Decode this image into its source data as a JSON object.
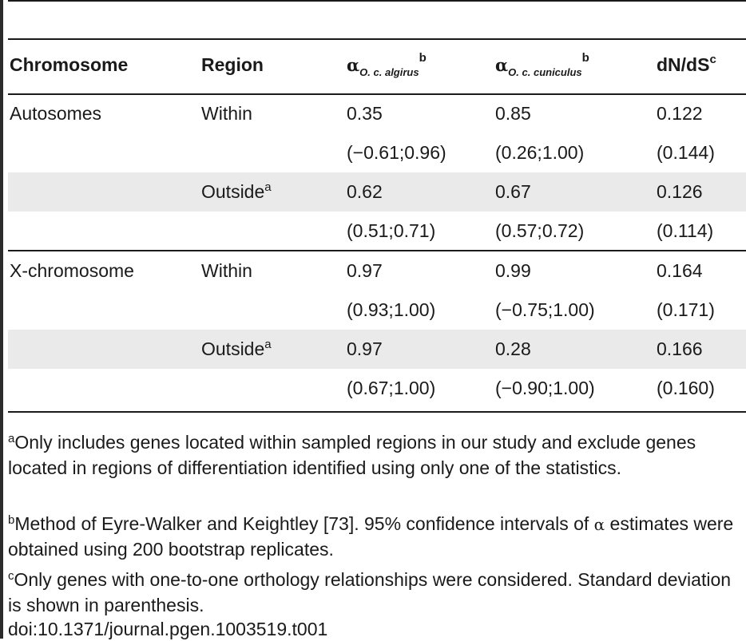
{
  "table": {
    "headers": {
      "chromosome": "Chromosome",
      "region": "Region",
      "alpha_algirus_symbol": "α",
      "alpha_algirus_sub": "O. c. algirus",
      "alpha_algirus_sup": "b",
      "alpha_cuniculus_symbol": "α",
      "alpha_cuniculus_sub": "O. c. cuniculus",
      "alpha_cuniculus_sup": "b",
      "dnds": "dN/dS",
      "dnds_sup": "c"
    },
    "rows": [
      {
        "chromosome": "Autosomes",
        "region": "Within",
        "region_sup": "",
        "alpha_algirus": "0.35",
        "alpha_cuniculus": "0.85",
        "dnds": "0.122"
      },
      {
        "chromosome": "",
        "region": "",
        "region_sup": "",
        "alpha_algirus": "(−0.61;0.96)",
        "alpha_cuniculus": "(0.26;1.00)",
        "dnds": "(0.144)"
      },
      {
        "chromosome": "",
        "region": "Outside",
        "region_sup": "a",
        "alpha_algirus": "0.62",
        "alpha_cuniculus": "0.67",
        "dnds": "0.126"
      },
      {
        "chromosome": "",
        "region": "",
        "region_sup": "",
        "alpha_algirus": "(0.51;0.71)",
        "alpha_cuniculus": "(0.57;0.72)",
        "dnds": "(0.114)"
      },
      {
        "chromosome": "X-chromosome",
        "region": "Within",
        "region_sup": "",
        "alpha_algirus": "0.97",
        "alpha_cuniculus": "0.99",
        "dnds": "0.164"
      },
      {
        "chromosome": "",
        "region": "",
        "region_sup": "",
        "alpha_algirus": "(0.93;1.00)",
        "alpha_cuniculus": "(−0.75;1.00)",
        "dnds": "(0.171)"
      },
      {
        "chromosome": "",
        "region": "Outside",
        "region_sup": "a",
        "alpha_algirus": "0.97",
        "alpha_cuniculus": "0.28",
        "dnds": "0.166"
      },
      {
        "chromosome": "",
        "region": "",
        "region_sup": "",
        "alpha_algirus": "(0.67;1.00)",
        "alpha_cuniculus": "(−0.90;1.00)",
        "dnds": "(0.160)"
      }
    ]
  },
  "footnotes": {
    "a_mark": "a",
    "a_text": "Only includes genes located within sampled regions in our study and exclude genes located in regions of differentiation identified using only one of the statistics.",
    "b_mark": "b",
    "b_text_1": "Method of Eyre-Walker and Keightley [73]. 95% confidence intervals of ",
    "b_alpha": "α",
    "b_text_2": " estimates were obtained using 200 bootstrap replicates.",
    "c_mark": "c",
    "c_text": "Only genes with one-to-one orthology relationships were considered. Standard deviation is shown in parenthesis.",
    "doi": "doi:10.1371/journal.pgen.1003519.t001"
  },
  "colors": {
    "band": "#eaeaea",
    "rule": "#1a1a1a",
    "text": "#1a1a1a"
  }
}
